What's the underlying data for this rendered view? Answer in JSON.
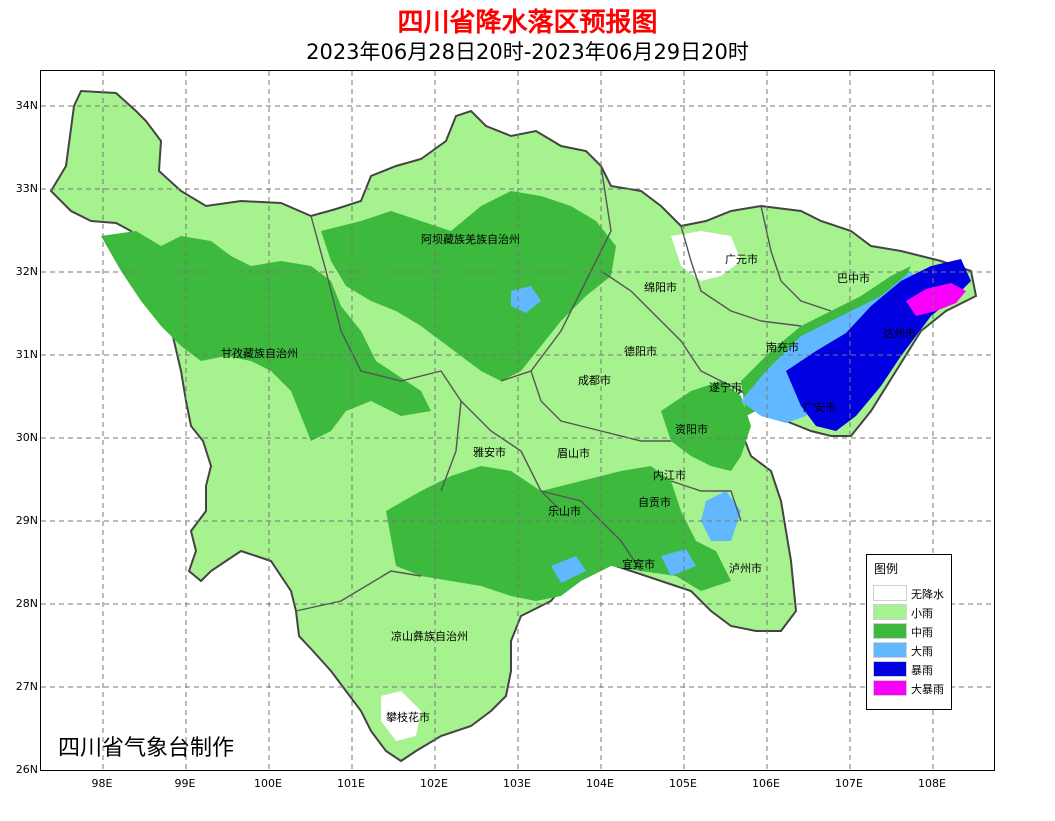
{
  "title": "四川省降水落区预报图",
  "subtitle": "2023年06月28日20时-2023年06月29日20时",
  "credit": "四川省气象台制作",
  "axes": {
    "lat_labels": [
      "34N",
      "33N",
      "32N",
      "31N",
      "30N",
      "29N",
      "28N",
      "27N",
      "26N"
    ],
    "lon_labels": [
      "98E",
      "99E",
      "100E",
      "101E",
      "102E",
      "103E",
      "104E",
      "105E",
      "106E",
      "107E",
      "108E"
    ]
  },
  "legend": {
    "title": "图例",
    "items": [
      {
        "label": "无降水",
        "color": "#ffffff"
      },
      {
        "label": "小雨",
        "color": "#a6f28e"
      },
      {
        "label": "中雨",
        "color": "#3db93d"
      },
      {
        "label": "大雨",
        "color": "#61b8ff"
      },
      {
        "label": "暴雨",
        "color": "#0000e1"
      },
      {
        "label": "大暴雨",
        "color": "#fa00fa"
      }
    ]
  },
  "places": [
    "阿坝藏族羌族自治州",
    "甘孜藏族自治州",
    "广元市",
    "巴中市",
    "绵阳市",
    "达州市",
    "南充市",
    "德阳市",
    "成都市",
    "遂宁市",
    "广安市",
    "资阳市",
    "雅安市",
    "眉山市",
    "内江市",
    "自贡市",
    "乐山市",
    "宜宾市",
    "泸州市",
    "凉山彝族自治州",
    "攀枝花市"
  ]
}
